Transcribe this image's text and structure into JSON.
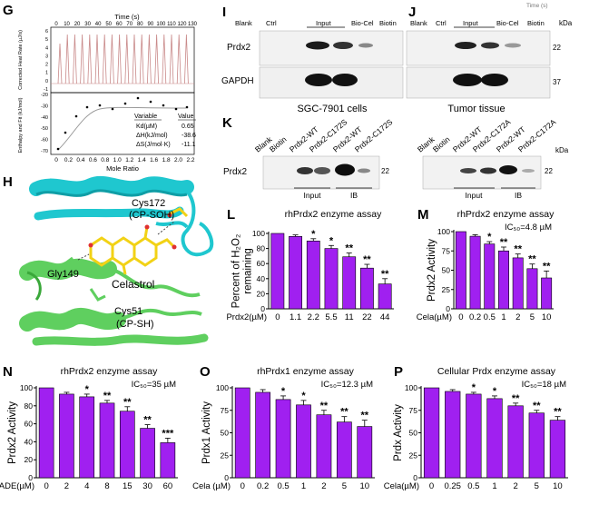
{
  "panels": {
    "G": {
      "letter": "G",
      "top_xlabel": "Time (s)",
      "top_xticks": [
        "0",
        "10",
        "20",
        "30",
        "40",
        "50",
        "60",
        "70",
        "80",
        "90",
        "100",
        "110",
        "120",
        "130"
      ],
      "top_ylabel": "Corrected Heat Rate (µJ/s)",
      "top_yticks": [
        "6",
        "5",
        "4",
        "3",
        "2",
        "1",
        "0",
        "-1"
      ],
      "bot_ylabel": "Enthalpy and Fit (kJ/mol)",
      "bot_yticks": [
        "-20",
        "-30",
        "-40",
        "-50",
        "-60",
        "-70"
      ],
      "bot_xlabel": "Mole Ratio",
      "bot_xticks": [
        "0",
        "0.2",
        "0.4",
        "0.6",
        "0.8",
        "1.0",
        "1.2",
        "1.4",
        "1.6",
        "1.8",
        "2.0",
        "2.2"
      ],
      "table": {
        "headers": [
          "Variable",
          "Value"
        ],
        "rows": [
          [
            "Kd(µM)",
            "0.65"
          ],
          [
            "ΔH(kJ/mol)",
            "-38.6"
          ],
          [
            "ΔS(J/mol·K)",
            "-11.1"
          ]
        ]
      }
    },
    "H": {
      "letter": "H",
      "labels": {
        "cys172": "Cys172",
        "cys172_sub": "(CP-SOH)",
        "gly149": "Gly149",
        "celastrol": "Celastrol",
        "cys51": "Cys51",
        "cys51_sub": "(CP-SH)"
      }
    },
    "I": {
      "letter": "I",
      "lanes": [
        "Blank",
        "Ctrl",
        "Input",
        "Bio-Cel",
        "Biotin"
      ],
      "row_labels": [
        "Prdx2",
        "GAPDH"
      ],
      "caption": "SGC-7901 cells"
    },
    "J": {
      "letter": "J",
      "lanes": [
        "Blank",
        "Ctrl",
        "Input",
        "Bio-Cel",
        "Biotin"
      ],
      "kda": [
        "22",
        "37"
      ],
      "kda_unit": "kDa",
      "caption": "Tumor tissue",
      "cut_text": "Time (s)"
    },
    "K": {
      "letter": "K",
      "row_label": "Prdx2",
      "left_lanes": [
        "Blank",
        "Biotin",
        "Prdx2-WT",
        "Prdx2-C172S",
        "Prdx2-WT",
        "Prdx2-C172S"
      ],
      "right_lanes": [
        "Blank",
        "Biotin",
        "Prdx2-WT",
        "Prdx2-C172A",
        "Prdx2-WT",
        "Prdx2-C172A"
      ],
      "groups": [
        "Input",
        "IB"
      ],
      "kda": "22",
      "kda_unit": "kDa"
    }
  },
  "chart_data": [
    {
      "id": "L",
      "type": "bar",
      "letter": "L",
      "title": "rhPrdx2 enzyme assay",
      "ylabel": "Percent of H₂O₂ remaining",
      "ylabel_lines": [
        "Percent of H₂O₂",
        "remaining"
      ],
      "xlabel": "Prdx2(µM)",
      "categories": [
        "0",
        "1.1",
        "2.2",
        "5.5",
        "11",
        "22",
        "44"
      ],
      "values": [
        100,
        96,
        90,
        80,
        69,
        54,
        33
      ],
      "errors": [
        0,
        2,
        3,
        4,
        5,
        5,
        7
      ],
      "sig": [
        "",
        "",
        "*",
        "*",
        "**",
        "**",
        "**"
      ],
      "ylim": [
        0,
        100
      ],
      "yticks": [
        "0",
        "20",
        "40",
        "60",
        "80",
        "100"
      ],
      "ic50": "",
      "bar_color": "#a020f0"
    },
    {
      "id": "M",
      "type": "bar",
      "letter": "M",
      "title": "rhPrdx2 enzyme assay",
      "ylabel": "Prdx2 Activity",
      "ylabel_lines": [
        "Prdx2 Activity"
      ],
      "xlabel": "Cela(µM)",
      "categories": [
        "0",
        "0.2",
        "0.5",
        "1",
        "2",
        "5",
        "10"
      ],
      "values": [
        100,
        94,
        84,
        75,
        66,
        52,
        40
      ],
      "errors": [
        0,
        2,
        3,
        5,
        5,
        6,
        9
      ],
      "sig": [
        "",
        "",
        "*",
        "**",
        "**",
        "**",
        "**"
      ],
      "ylim": [
        0,
        100
      ],
      "yticks": [
        "0",
        "25",
        "50",
        "75",
        "100"
      ],
      "ic50": "IC₅₀=4.8 µM",
      "bar_color": "#a020f0"
    },
    {
      "id": "N",
      "type": "bar",
      "letter": "N",
      "title": "rhPrdx2 enzyme assay",
      "ylabel": "Prdx2 Activity",
      "ylabel_lines": [
        "Prdx2 Activity"
      ],
      "xlabel": "ADE(µM)",
      "categories": [
        "0",
        "2",
        "4",
        "8",
        "15",
        "30",
        "60"
      ],
      "values": [
        100,
        93,
        90,
        83,
        74,
        55,
        39
      ],
      "errors": [
        0,
        2,
        3,
        3,
        5,
        4,
        5
      ],
      "sig": [
        "",
        "",
        "*",
        "**",
        "**",
        "**",
        "***"
      ],
      "ylim": [
        0,
        100
      ],
      "yticks": [
        "0",
        "20",
        "40",
        "60",
        "80",
        "100"
      ],
      "ic50": "IC₅₀=35 µM",
      "bar_color": "#a020f0"
    },
    {
      "id": "O",
      "type": "bar",
      "letter": "O",
      "title": "rhPrdx1 enzyme assay",
      "ylabel": "Prdx1 Activity",
      "ylabel_lines": [
        "Prdx1 Activity"
      ],
      "xlabel": "Cela (µM)",
      "categories": [
        "0",
        "0.2",
        "0.5",
        "1",
        "2",
        "5",
        "10"
      ],
      "values": [
        100,
        95,
        87,
        81,
        70,
        62,
        57
      ],
      "errors": [
        0,
        3,
        4,
        5,
        5,
        6,
        7
      ],
      "sig": [
        "",
        "",
        "*",
        "*",
        "**",
        "**",
        "**"
      ],
      "ylim": [
        0,
        100
      ],
      "yticks": [
        "0",
        "25",
        "50",
        "75",
        "100"
      ],
      "ic50": "IC₅₀=12.3 µM",
      "bar_color": "#a020f0"
    },
    {
      "id": "P",
      "type": "bar",
      "letter": "P",
      "title": "Cellular Prdx enzyme assay",
      "ylabel": "Prdx Activity",
      "ylabel_lines": [
        "Prdx Activity"
      ],
      "xlabel": "Cela(µM)",
      "categories": [
        "0",
        "0.25",
        "0.5",
        "1",
        "2",
        "5",
        "10"
      ],
      "values": [
        100,
        96,
        93,
        88,
        80,
        72,
        64
      ],
      "errors": [
        0,
        2,
        2,
        3,
        3,
        3,
        4
      ],
      "sig": [
        "",
        "",
        "*",
        "*",
        "**",
        "**",
        "**"
      ],
      "ylim": [
        0,
        100
      ],
      "yticks": [
        "0",
        "25",
        "50",
        "75",
        "100"
      ],
      "ic50": "IC₅₀=18 µM",
      "bar_color": "#a020f0"
    }
  ]
}
